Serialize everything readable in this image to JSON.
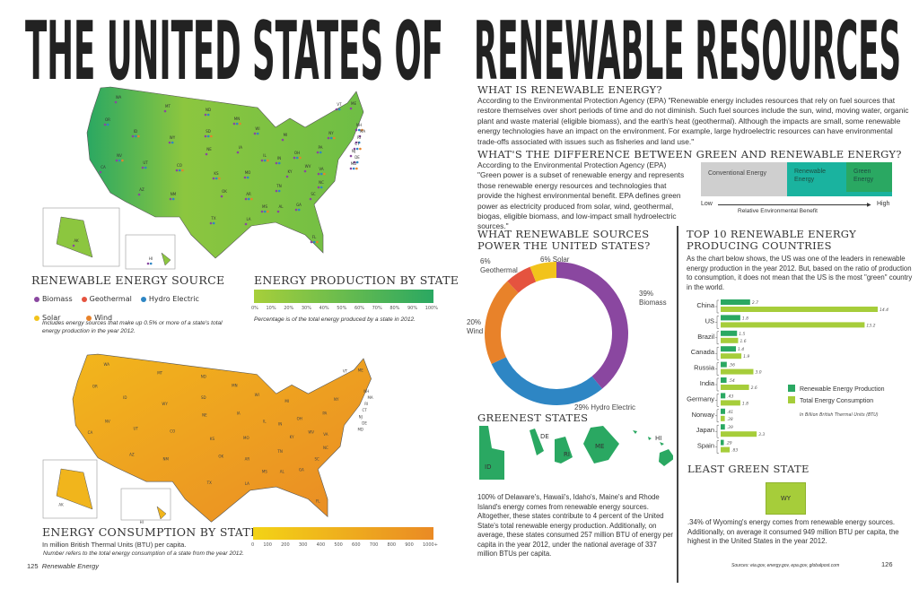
{
  "title": {
    "left": "THE UNITED STATES OF",
    "right": "RENEWABLE RESOURCES"
  },
  "colors": {
    "biomass": "#8a47a0",
    "geothermal": "#e5533f",
    "hydro": "#2e86c4",
    "solar": "#f2c31b",
    "wind": "#e8822a",
    "renewable_prod": "#2aa862",
    "total_cons": "#a6cd3a",
    "renewable_box": "#1ab39f",
    "green_box": "#2aa862",
    "conventional_box": "#cfcfcf"
  },
  "production_map": {
    "state_labels": [
      "WA",
      "OR",
      "ID",
      "MT",
      "ND",
      "SD",
      "NE",
      "WY",
      "NV",
      "CA",
      "UT",
      "CO",
      "AZ",
      "NM",
      "KS",
      "OK",
      "TX",
      "MN",
      "IA",
      "MO",
      "AR",
      "LA",
      "WI",
      "IL",
      "MI",
      "IN",
      "OH",
      "KY",
      "TN",
      "MS",
      "AL",
      "GA",
      "FL",
      "SC",
      "NC",
      "VA",
      "WV",
      "PA",
      "NY",
      "ME",
      "VT",
      "NH",
      "MA",
      "RI",
      "CT",
      "NJ",
      "DE",
      "MD",
      "AK",
      "HI"
    ]
  },
  "source_legend": {
    "heading": "RENEWABLE ENERGY SOURCE",
    "items": [
      {
        "label": "Biomass",
        "color": "#8a47a0"
      },
      {
        "label": "Geothermal",
        "color": "#e5533f"
      },
      {
        "label": "Hydro Electric",
        "color": "#2e86c4"
      },
      {
        "label": "Solar",
        "color": "#f2c31b"
      },
      {
        "label": "Wind",
        "color": "#e8822a"
      }
    ],
    "note": "Includes energy sources that make up 0.5% or more of a state's total energy production in the year 2012."
  },
  "production_scale": {
    "heading": "ENERGY PRODUCTION BY STATE",
    "ticks": [
      "0%",
      "10%",
      "20%",
      "30%",
      "40%",
      "50%",
      "60%",
      "70%",
      "80%",
      "90%",
      "100%"
    ],
    "note": "Percentage is of the total energy produced by a state in 2012."
  },
  "consumption_scale": {
    "heading": "ENERGY CONSUMPTION BY STATE",
    "subtitle": "In million British Thermal Units (BTU) per capita.",
    "note": "Number refers to the total energy consumption of a state from the year 2012.",
    "ticks": [
      "0",
      "100",
      "200",
      "300",
      "400",
      "500",
      "600",
      "700",
      "800",
      "900",
      "1000+"
    ]
  },
  "footer_left": {
    "page": "125",
    "label": "Renewable Energy"
  },
  "footer_right": {
    "sources": "Sources: eia.gov, energy.gov, epa.gov, globalpost.com",
    "page": "126"
  },
  "what_is": {
    "heading": "WHAT IS RENEWABLE ENERGY?",
    "body": "According to the Environmental Protection Agency (EPA) \"Renewable energy includes resources that rely on fuel sources that restore themselves over short periods of time and do not diminish. Such fuel sources include the sun, wind, moving water, organic plant and waste material (eligible biomass), and the earth's heat (geothermal). Although the impacts are small, some renewable energy technologies have an impact on the environment. For example, large hydroelectric resources can have environmental trade-offs associated with issues such as fisheries and land use.\""
  },
  "difference": {
    "heading": "WHAT'S THE DIFFERENCE BETWEEN GREEN AND RENEWABLE ENERGY?",
    "body": "According to the Environmental Protection Agency (EPA) \"Green power is a subset of renewable energy and represents those renewable energy resources and technologies that provide the highest environmental benefit. EPA defines green power as electricity produced from solar, wind, geothermal, biogas, eligible biomass, and low-impact small hydroelectric sources.\"",
    "boxes": {
      "conventional": "Conventional Energy",
      "renewable": "Renewable Energy",
      "green": "Green Energy"
    },
    "axis": {
      "low": "Low",
      "high": "High",
      "label": "Relative Environmental Benefit"
    }
  },
  "sources": {
    "heading_line1": "WHAT RENEWABLE SOURCES",
    "heading_line2": "POWER THE UNITED STATES?"
  },
  "greenest": {
    "heading": "GREENEST STATES",
    "states": [
      "ID",
      "DE",
      "RI",
      "ME",
      "HI"
    ],
    "body": "100% of Delaware's, Hawaii's, Idaho's, Maine's and Rhode Island's energy comes from renewable energy sources. Altogether, these states contribute to 4 percent of the United State's total renewable energy production. Additionally, on average, these states consumed 257 million BTU of energy per capita in the year 2012, under the national average of 337 million BTUs per capita."
  },
  "top10": {
    "heading_line1": "TOP 10 RENEWABLE ENERGY",
    "heading_line2": "PRODUCING COUNTRIES",
    "body": "As the chart below shows, the US was one of the leaders in renewable energy production in the year 2012. But, based on the ratio of production to consumption, it does not mean that the US is the most \"green\" country in the world."
  },
  "least_green": {
    "heading": "LEAST GREEN STATE",
    "state": "WY",
    "body1": ".34% of Wyoming's energy comes from renewable energy sources.",
    "body2": "Additionally, on average it consumed 949 million BTU per capita, the highest in the United States in the year 2012."
  },
  "chart_data": [
    {
      "type": "pie",
      "title": "",
      "slices": [
        {
          "label": "Biomass",
          "value": 39,
          "text": "39%",
          "name": "Biomass",
          "color": "#8a47a0"
        },
        {
          "label": "Hydro Electric",
          "value": 29,
          "text": "29% Hydro Electric",
          "name": "Hydro Electric",
          "color": "#2e86c4"
        },
        {
          "label": "Wind",
          "value": 20,
          "text": "20%",
          "name": "Wind",
          "color": "#e8822a"
        },
        {
          "label": "Geothermal",
          "value": 6,
          "text": "6%",
          "name": "Geothermal",
          "color": "#e5533f"
        },
        {
          "label": "Solar",
          "value": 6,
          "text": "6% Solar",
          "name": "",
          "color": "#f2c31b"
        }
      ],
      "donut": true
    },
    {
      "type": "bar",
      "orientation": "horizontal",
      "categories": [
        "China",
        "US",
        "Brazil",
        "Canada",
        "Russia",
        "India",
        "Germany",
        "Norway",
        "Japan",
        "Spain"
      ],
      "series": [
        {
          "name": "Renewable Energy Production",
          "values": [
            2.7,
            1.8,
            1.5,
            1.4,
            0.56,
            0.54,
            0.43,
            0.41,
            0.39,
            0.29
          ],
          "labels": [
            "2.7",
            "1.8",
            "1.5",
            "1.4",
            ".56",
            ".54",
            ".43",
            ".41",
            ".39",
            ".29"
          ],
          "color": "#2aa862"
        },
        {
          "name": "Total Energy Consumption",
          "values": [
            14.4,
            13.2,
            1.6,
            1.9,
            3.0,
            2.6,
            1.8,
            0.38,
            3.3,
            0.83
          ],
          "labels": [
            "14.4",
            "13.2",
            "1.6",
            "1.9",
            "3.0",
            "2.6",
            "1.8",
            ".38",
            "3.3",
            ".83"
          ],
          "color": "#a6cd3a"
        }
      ],
      "unit_note": "In Billion British Thermal Units (BTU)",
      "legend": "right",
      "xlim": [
        0,
        14.4
      ],
      "grid": false
    }
  ]
}
